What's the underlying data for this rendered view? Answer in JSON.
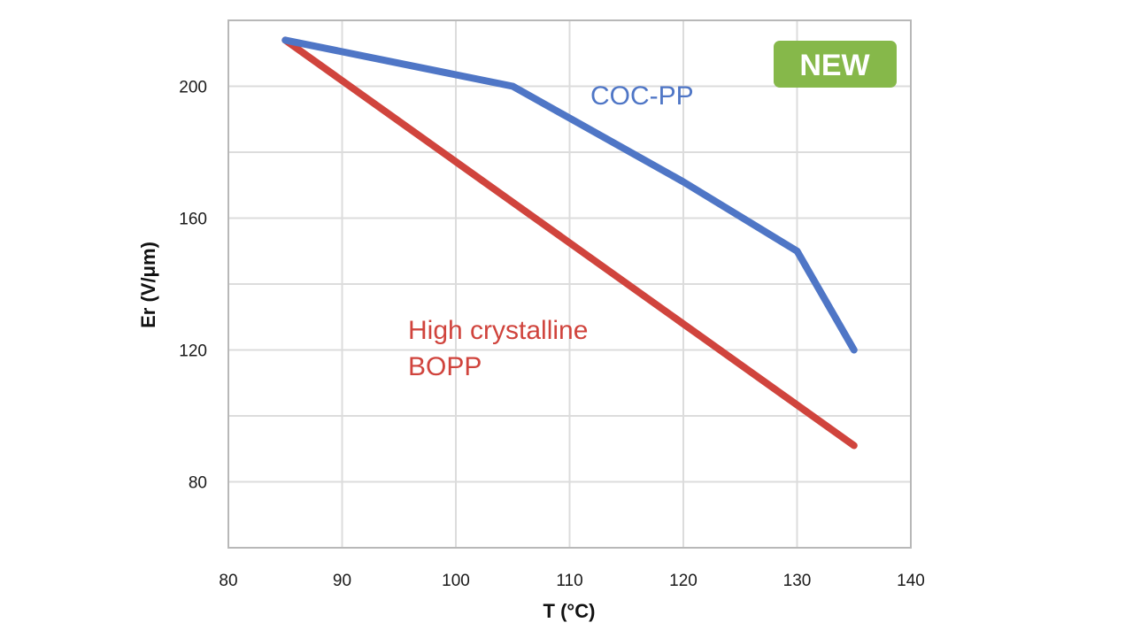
{
  "chart_data": {
    "type": "line",
    "xlabel": "T (°C)",
    "ylabel": "Er (V/μm)",
    "xlim": [
      80,
      140
    ],
    "ylim": [
      60,
      220
    ],
    "x_ticks": [
      80,
      90,
      100,
      110,
      120,
      130,
      140
    ],
    "y_ticks": [
      80,
      120,
      160,
      200
    ],
    "grid": true,
    "series": [
      {
        "name": "COC-PP",
        "color": "#4f76c6",
        "points": [
          [
            85,
            214
          ],
          [
            105,
            200
          ],
          [
            120,
            171
          ],
          [
            130,
            150
          ],
          [
            135,
            120
          ]
        ]
      },
      {
        "name": "High crystalline BOPP",
        "label_lines": [
          "High crystalline",
          "BOPP"
        ],
        "color": "#d0443d",
        "points": [
          [
            85,
            214
          ],
          [
            135,
            91
          ]
        ]
      }
    ],
    "badge": {
      "text": "NEW",
      "color": "#86b84a"
    }
  }
}
